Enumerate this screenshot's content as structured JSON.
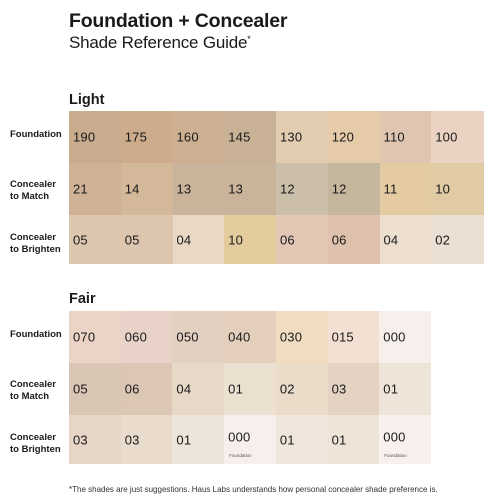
{
  "header": {
    "title": "Foundation + Concealer",
    "subtitle": "Shade Reference Guide",
    "subtitle_mark": "*"
  },
  "row_labels": {
    "foundation": "Foundation",
    "match_1": "Concealer",
    "match_2": "to Match",
    "brighten_1": "Concealer",
    "brighten_2": "to Brighten"
  },
  "sections": [
    {
      "name": "Light",
      "rows": {
        "foundation": [
          {
            "label": "190",
            "color": "#c9ab8d"
          },
          {
            "label": "175",
            "color": "#ccac8c"
          },
          {
            "label": "160",
            "color": "#cdb091"
          },
          {
            "label": "145",
            "color": "#c8b195"
          },
          {
            "label": "130",
            "color": "#e3cdb1"
          },
          {
            "label": "120",
            "color": "#e6cba9"
          },
          {
            "label": "110",
            "color": "#e0c6b1"
          },
          {
            "label": "100",
            "color": "#ebd3c3"
          }
        ],
        "match": [
          {
            "label": "21",
            "color": "#cfb295"
          },
          {
            "label": "14",
            "color": "#d4b89a"
          },
          {
            "label": "13",
            "color": "#c9b39a"
          },
          {
            "label": "13",
            "color": "#c9b39a"
          },
          {
            "label": "12",
            "color": "#cbbfa9"
          },
          {
            "label": "12",
            "color": "#c5b79e"
          },
          {
            "label": "11",
            "color": "#e4cba1"
          },
          {
            "label": "10",
            "color": "#e1cba4"
          }
        ],
        "brighten": [
          {
            "label": "05",
            "color": "#dcc6af"
          },
          {
            "label": "05",
            "color": "#dcc6af"
          },
          {
            "label": "04",
            "color": "#ead8c6"
          },
          {
            "label": "10",
            "color": "#e2cc9e"
          },
          {
            "label": "06",
            "color": "#e4c8b6"
          },
          {
            "label": "06",
            "color": "#dfc2ad"
          },
          {
            "label": "04",
            "color": "#ecdfd0"
          },
          {
            "label": "02",
            "color": "#ebded2"
          }
        ]
      }
    },
    {
      "name": "Fair",
      "rows": {
        "foundation": [
          {
            "label": "070",
            "color": "#ebd4c5"
          },
          {
            "label": "060",
            "color": "#e9d3c8"
          },
          {
            "label": "050",
            "color": "#e2d0c0"
          },
          {
            "label": "040",
            "color": "#e3cfbc"
          },
          {
            "label": "030",
            "color": "#f0ddc1"
          },
          {
            "label": "015",
            "color": "#f3e0d2"
          },
          {
            "label": "000",
            "color": "#f6efec"
          }
        ],
        "match": [
          {
            "label": "05",
            "color": "#d9c5b3"
          },
          {
            "label": "06",
            "color": "#dcc7b4"
          },
          {
            "label": "04",
            "color": "#e8d8c7"
          },
          {
            "label": "01",
            "color": "#ece0d0"
          },
          {
            "label": "02",
            "color": "#eadcc9"
          },
          {
            "label": "03",
            "color": "#e4d2c2"
          },
          {
            "label": "01",
            "color": "#eee4d8"
          }
        ],
        "brighten": [
          {
            "label": "03",
            "color": "#e6d6c8"
          },
          {
            "label": "03",
            "color": "#e9dccd"
          },
          {
            "label": "01",
            "color": "#eee5da"
          },
          {
            "label": "000",
            "sub": "Foundation",
            "color": "#f6efeb"
          },
          {
            "label": "01",
            "color": "#efe5da"
          },
          {
            "label": "01",
            "color": "#eee4d8"
          },
          {
            "label": "000",
            "sub": "Foundation",
            "color": "#f7f0ed"
          }
        ]
      }
    }
  ],
  "footnote": "*The shades are just suggestions. Haus Labs understands how personal concealer shade preference is."
}
